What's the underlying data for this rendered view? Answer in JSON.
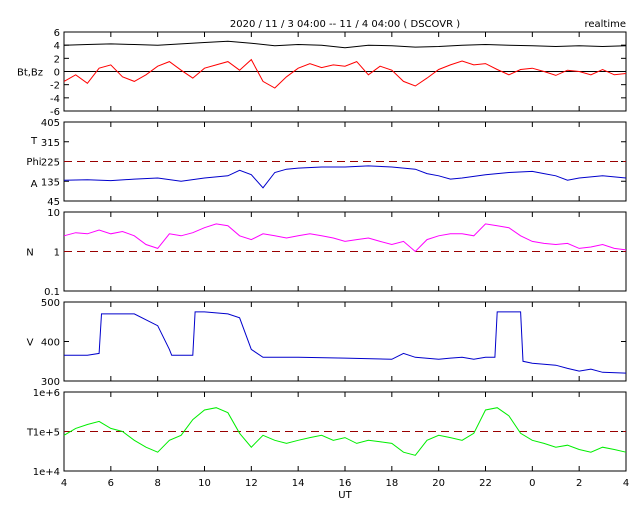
{
  "title": "2020 / 11 / 3   04:00 -- 11 / 4   04:00 ( DSCOVR )",
  "badge": "realtime",
  "xaxis": {
    "label": "UT",
    "ticks": [
      "4",
      "6",
      "8",
      "10",
      "12",
      "14",
      "16",
      "18",
      "20",
      "22",
      "0",
      "2",
      "4"
    ],
    "hours": [
      4,
      6,
      8,
      10,
      12,
      14,
      16,
      18,
      20,
      22,
      24,
      26,
      28
    ],
    "range": [
      4,
      28
    ]
  },
  "chart_data": [
    {
      "type": "line",
      "panel": "magnetic-field",
      "ylabel": "Bt,Bz",
      "ylim": [
        -6,
        6
      ],
      "yticks": [
        "6",
        "4",
        "2",
        "0",
        "-2",
        "-4",
        "-6"
      ],
      "ytick_values": [
        6,
        4,
        2,
        0,
        -2,
        -4,
        -6
      ],
      "reference_lines": [
        {
          "y": 0,
          "color": "#000000",
          "style": "solid"
        }
      ],
      "series": [
        {
          "color": "#000000",
          "x": [
            4,
            5,
            6,
            7,
            8,
            9,
            10,
            11,
            12,
            13,
            14,
            15,
            16,
            17,
            18,
            19,
            20,
            21,
            22,
            23,
            24,
            25,
            26,
            27,
            28
          ],
          "y": [
            4.0,
            4.1,
            4.2,
            4.1,
            4.0,
            4.2,
            4.4,
            4.6,
            4.3,
            3.9,
            4.1,
            4.0,
            3.6,
            4.0,
            3.9,
            3.7,
            3.8,
            4.0,
            4.1,
            4.0,
            3.9,
            3.8,
            3.9,
            3.8,
            3.9
          ]
        },
        {
          "color": "#ff0000",
          "x": [
            4,
            4.5,
            5,
            5.5,
            6,
            6.5,
            7,
            7.5,
            8,
            8.5,
            9,
            9.5,
            10,
            10.5,
            11,
            11.5,
            12,
            12.5,
            13,
            13.5,
            14,
            14.5,
            15,
            15.5,
            16,
            16.5,
            17,
            17.5,
            18,
            18.5,
            19,
            19.5,
            20,
            20.5,
            21,
            21.5,
            22,
            22.5,
            23,
            23.5,
            24,
            24.5,
            25,
            25.5,
            26,
            26.5,
            27,
            27.5,
            28
          ],
          "y": [
            -1.5,
            -0.5,
            -1.8,
            0.5,
            1.0,
            -0.8,
            -1.5,
            -0.5,
            0.8,
            1.5,
            0.2,
            -1.0,
            0.5,
            1.0,
            1.5,
            0.2,
            1.8,
            -1.5,
            -2.5,
            -0.8,
            0.5,
            1.2,
            0.6,
            1.0,
            0.8,
            1.5,
            -0.5,
            0.8,
            0.2,
            -1.5,
            -2.2,
            -1.0,
            0.3,
            1.0,
            1.6,
            1.0,
            1.2,
            0.3,
            -0.5,
            0.3,
            0.5,
            0.0,
            -0.6,
            0.2,
            0.0,
            -0.5,
            0.3,
            -0.5,
            -0.3
          ]
        }
      ]
    },
    {
      "type": "line",
      "panel": "field-angle",
      "ylabel_lines": [
        "T",
        "Phi",
        "A"
      ],
      "ylim": [
        45,
        405
      ],
      "yticks": [
        "405",
        "315",
        "225",
        "135",
        "45"
      ],
      "ytick_values": [
        405,
        315,
        225,
        135,
        45
      ],
      "reference_lines": [
        {
          "y": 225,
          "color": "#990000",
          "style": "dashed"
        }
      ],
      "series": [
        {
          "color": "#0000cc",
          "x": [
            4,
            5,
            6,
            7,
            8,
            9,
            10,
            11,
            11.5,
            12,
            12.5,
            13,
            13.5,
            14,
            15,
            16,
            17,
            18,
            19,
            19.5,
            20,
            20.5,
            21,
            22,
            23,
            24,
            24.5,
            25,
            25.5,
            26,
            27,
            28
          ],
          "y": [
            140,
            142,
            138,
            145,
            150,
            135,
            150,
            160,
            185,
            165,
            105,
            175,
            190,
            195,
            200,
            200,
            205,
            200,
            190,
            170,
            160,
            145,
            150,
            165,
            175,
            180,
            170,
            160,
            140,
            150,
            160,
            150
          ]
        }
      ]
    },
    {
      "type": "line",
      "panel": "density",
      "ylabel": "N",
      "yscale": "log",
      "ylim": [
        0.1,
        10
      ],
      "yticks": [
        "10",
        "1",
        "0.1"
      ],
      "ytick_values": [
        10,
        1,
        0.1
      ],
      "reference_lines": [
        {
          "y": 1,
          "color": "#990000",
          "style": "dashed"
        }
      ],
      "series": [
        {
          "color": "#ff00ff",
          "x": [
            4,
            4.5,
            5,
            5.5,
            6,
            6.5,
            7,
            7.5,
            8,
            8.5,
            9,
            9.5,
            10,
            10.5,
            11,
            11.5,
            12,
            12.5,
            13,
            13.5,
            14,
            14.5,
            15,
            15.5,
            16,
            16.5,
            17,
            17.5,
            18,
            18.5,
            19,
            19.5,
            20,
            20.5,
            21,
            21.5,
            22,
            22.5,
            23,
            23.5,
            24,
            24.5,
            25,
            25.5,
            26,
            26.5,
            27,
            27.5,
            28
          ],
          "y": [
            2.5,
            3.0,
            2.8,
            3.5,
            2.8,
            3.2,
            2.5,
            1.5,
            1.2,
            2.8,
            2.5,
            3.0,
            4.0,
            5.0,
            4.5,
            2.5,
            2.0,
            2.8,
            2.5,
            2.2,
            2.5,
            2.8,
            2.5,
            2.2,
            1.8,
            2.0,
            2.2,
            1.8,
            1.5,
            1.8,
            1.0,
            2.0,
            2.5,
            2.8,
            2.8,
            2.5,
            5.0,
            4.5,
            4.0,
            2.5,
            1.8,
            1.6,
            1.5,
            1.6,
            1.2,
            1.3,
            1.5,
            1.2,
            1.1
          ]
        }
      ]
    },
    {
      "type": "line",
      "panel": "velocity",
      "ylabel": "V",
      "ylim": [
        300,
        500
      ],
      "yticks": [
        "500",
        "400",
        "300"
      ],
      "ytick_values": [
        500,
        400,
        300
      ],
      "series": [
        {
          "color": "#0000cc",
          "x": [
            4,
            5,
            5.5,
            5.6,
            7,
            7.5,
            8,
            8.5,
            8.6,
            9,
            9.5,
            9.6,
            10,
            11,
            11.5,
            12,
            12.5,
            13,
            14,
            16,
            18,
            18.5,
            19,
            20,
            20.5,
            21,
            21.5,
            22,
            22.4,
            22.5,
            23,
            23.5,
            23.6,
            24,
            25,
            25.5,
            26,
            26.5,
            27,
            28
          ],
          "y": [
            365,
            365,
            370,
            470,
            470,
            455,
            440,
            380,
            365,
            365,
            365,
            475,
            475,
            470,
            460,
            380,
            360,
            360,
            360,
            358,
            355,
            370,
            360,
            355,
            358,
            360,
            355,
            360,
            360,
            475,
            475,
            475,
            350,
            345,
            340,
            332,
            325,
            330,
            322,
            320
          ]
        }
      ]
    },
    {
      "type": "line",
      "panel": "temperature",
      "ylabel": "T",
      "yscale": "log",
      "ylim": [
        10000,
        1000000
      ],
      "yticks": [
        "1e+6",
        "1e+5",
        "1e+4"
      ],
      "ytick_values": [
        1000000,
        100000,
        10000
      ],
      "reference_lines": [
        {
          "y": 100000,
          "color": "#990000",
          "style": "dashed"
        }
      ],
      "series": [
        {
          "color": "#00ee00",
          "x": [
            4,
            4.5,
            5,
            5.5,
            6,
            6.5,
            7,
            7.5,
            8,
            8.5,
            9,
            9.5,
            10,
            10.5,
            11,
            11.5,
            12,
            12.5,
            13,
            13.5,
            14,
            14.5,
            15,
            15.5,
            16,
            16.5,
            17,
            17.5,
            18,
            18.5,
            19,
            19.5,
            20,
            20.5,
            21,
            21.5,
            22,
            22.5,
            23,
            23.5,
            24,
            24.5,
            25,
            25.5,
            26,
            26.5,
            27,
            27.5,
            28
          ],
          "y": [
            80000,
            120000,
            150000,
            180000,
            120000,
            100000,
            60000,
            40000,
            30000,
            60000,
            80000,
            200000,
            350000,
            400000,
            300000,
            90000,
            40000,
            80000,
            60000,
            50000,
            60000,
            70000,
            80000,
            60000,
            70000,
            50000,
            60000,
            55000,
            50000,
            30000,
            25000,
            60000,
            80000,
            70000,
            60000,
            90000,
            350000,
            400000,
            250000,
            90000,
            60000,
            50000,
            40000,
            45000,
            35000,
            30000,
            40000,
            35000,
            30000
          ]
        }
      ]
    }
  ]
}
